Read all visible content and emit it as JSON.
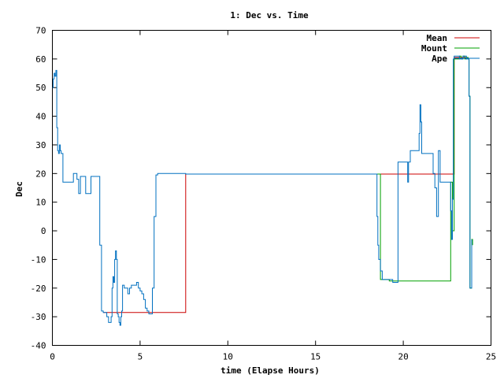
{
  "chart_data": {
    "type": "line",
    "title": "1: Dec vs. Time",
    "xlabel": "time (Elapse Hours)",
    "ylabel": "Dec",
    "xlim": [
      0,
      25
    ],
    "ylim": [
      -40,
      70
    ],
    "xticks": [
      0,
      5,
      10,
      15,
      20,
      25
    ],
    "yticks": [
      -40,
      -30,
      -20,
      -10,
      0,
      10,
      20,
      30,
      40,
      50,
      60,
      70
    ],
    "grid": false,
    "legend_position": "top-right",
    "series": [
      {
        "name": "Mean",
        "color": "#cc0000",
        "x": [
          2.9,
          3.3,
          7.6,
          18.4,
          22.9,
          23.7
        ],
        "y": [
          -28.5,
          -28.5,
          19.8,
          19.8,
          60.5,
          60.5
        ]
      },
      {
        "name": "Mount",
        "color": "#00a000",
        "x": [
          18.4,
          18.7,
          19.2,
          22.7,
          22.8,
          22.9,
          23.2,
          23.3,
          23.4,
          23.5,
          23.6,
          23.7,
          23.75,
          23.8,
          23.85,
          23.9,
          23.95
        ],
        "y": [
          19.8,
          -17,
          -17.5,
          17,
          0,
          60,
          61,
          60,
          61,
          60,
          60.5,
          60,
          47,
          -20,
          -20,
          -3,
          -5
        ]
      },
      {
        "name": "Ape",
        "color": "#0070c0",
        "x": [
          0.0,
          0.05,
          0.1,
          0.15,
          0.2,
          0.25,
          0.3,
          0.35,
          0.4,
          0.45,
          0.5,
          0.6,
          0.7,
          0.8,
          0.9,
          1.0,
          1.2,
          1.4,
          1.5,
          1.6,
          1.7,
          1.8,
          1.9,
          2.0,
          2.2,
          2.3,
          2.4,
          2.5,
          2.6,
          2.7,
          2.8,
          2.9,
          2.95,
          3.0,
          3.1,
          3.2,
          3.3,
          3.35,
          3.4,
          3.45,
          3.5,
          3.55,
          3.6,
          3.65,
          3.7,
          3.75,
          3.8,
          3.85,
          3.9,
          3.95,
          4.0,
          4.05,
          4.1,
          4.2,
          4.3,
          4.4,
          4.5,
          4.6,
          4.7,
          4.8,
          4.9,
          5.0,
          5.1,
          5.2,
          5.3,
          5.35,
          5.4,
          5.45,
          5.5,
          5.6,
          5.7,
          5.8,
          5.9,
          6.0,
          6.1,
          6.2,
          6.5,
          7.0,
          7.6,
          10.0,
          15.0,
          18.4,
          18.5,
          18.55,
          18.6,
          18.7,
          18.8,
          19.0,
          19.2,
          19.3,
          19.4,
          19.5,
          19.6,
          19.7,
          20.0,
          20.2,
          20.25,
          20.3,
          20.4,
          20.5,
          20.6,
          20.8,
          20.9,
          20.95,
          21.0,
          21.05,
          21.1,
          21.2,
          21.4,
          21.5,
          21.6,
          21.7,
          21.8,
          21.9,
          22.0,
          22.1,
          22.2,
          22.3,
          22.4,
          22.5,
          22.6,
          22.7,
          22.75,
          22.8,
          22.85,
          22.9,
          23.2,
          23.4,
          23.6,
          23.7,
          23.75,
          23.8,
          23.85,
          23.9
        ],
        "y": [
          50,
          53,
          55,
          54,
          56,
          36,
          28,
          27,
          30,
          28,
          27,
          17,
          17,
          17,
          17,
          17,
          20,
          18,
          13,
          19,
          19,
          19,
          13,
          13,
          19,
          19,
          19,
          19,
          19,
          -5,
          -28,
          -28.5,
          -28.5,
          -28.5,
          -30,
          -32,
          -32,
          -30,
          -20,
          -16,
          -18,
          -10,
          -7,
          -10,
          -29,
          -30,
          -32,
          -33,
          -30,
          -28,
          -19,
          -19,
          -20,
          -20,
          -22,
          -20,
          -19,
          -19,
          -19,
          -18,
          -20,
          -21,
          -22,
          -24,
          -27,
          -27,
          -28,
          -28,
          -29,
          -29,
          -20,
          5,
          19.5,
          20,
          20,
          20,
          20,
          20,
          19.8,
          19.8,
          19.8,
          19.8,
          5,
          -5,
          -10,
          -14,
          -17,
          -17,
          -17,
          -17,
          -18,
          -18,
          -18,
          24,
          24,
          24,
          17,
          24,
          28,
          28,
          28,
          28,
          34,
          44,
          38,
          27,
          27,
          27,
          27,
          27,
          27,
          20,
          15,
          5,
          28,
          17,
          17,
          17,
          17,
          17,
          17,
          7,
          -3,
          11,
          60,
          61,
          60,
          61,
          60,
          60,
          47,
          -20,
          -20,
          -3
        ]
      }
    ]
  }
}
